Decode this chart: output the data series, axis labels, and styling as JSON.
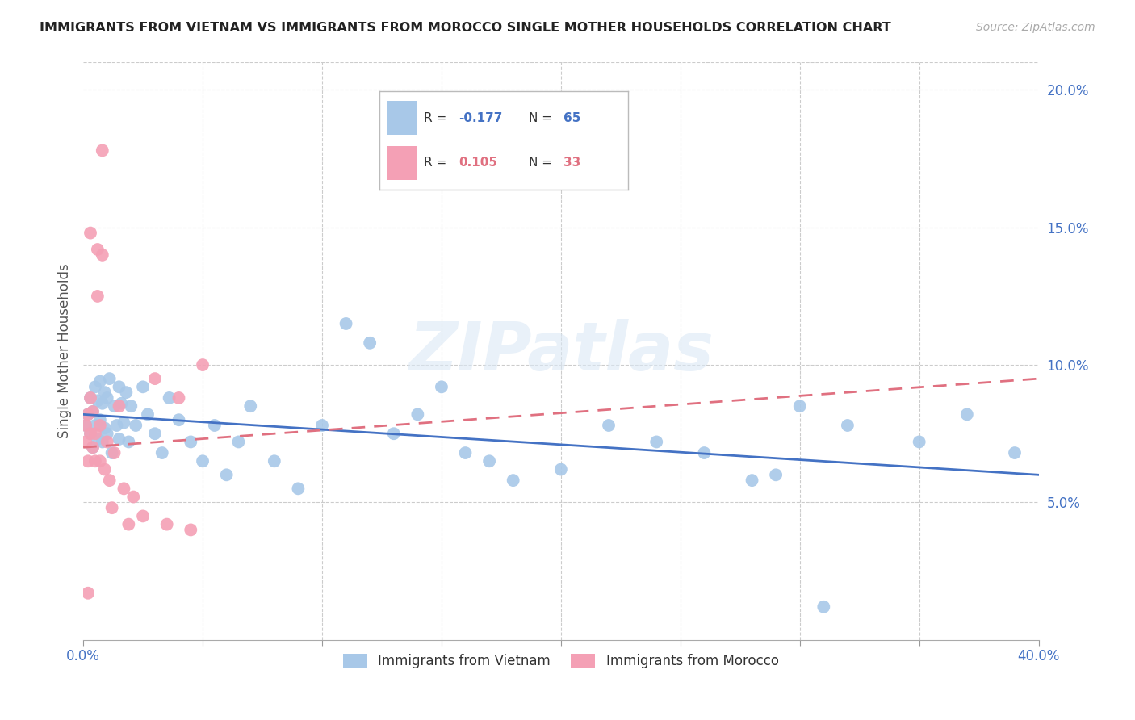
{
  "title": "IMMIGRANTS FROM VIETNAM VS IMMIGRANTS FROM MOROCCO SINGLE MOTHER HOUSEHOLDS CORRELATION CHART",
  "source": "Source: ZipAtlas.com",
  "ylabel": "Single Mother Households",
  "xlim": [
    0.0,
    0.4
  ],
  "ylim": [
    0.0,
    0.21
  ],
  "yticks": [
    0.05,
    0.1,
    0.15,
    0.2
  ],
  "ytick_labels": [
    "5.0%",
    "10.0%",
    "15.0%",
    "20.0%"
  ],
  "xtick_positions": [
    0.0,
    0.05,
    0.1,
    0.15,
    0.2,
    0.25,
    0.3,
    0.35,
    0.4
  ],
  "xtick_labels_sparse": {
    "0": "0.0%",
    "8": "40.0%"
  },
  "vietnam_color": "#a8c8e8",
  "morocco_color": "#f4a0b5",
  "vietnam_trend_color": "#4472c4",
  "morocco_trend_color": "#e07080",
  "legend_vietnam_label": "Immigrants from Vietnam",
  "legend_morocco_label": "Immigrants from Morocco",
  "vietnam_R": "-0.177",
  "vietnam_N": "65",
  "morocco_R": "0.105",
  "morocco_N": "33",
  "watermark": "ZIPatlas",
  "vietnam_trend_x0": 0.0,
  "vietnam_trend_y0": 0.082,
  "vietnam_trend_x1": 0.4,
  "vietnam_trend_y1": 0.06,
  "morocco_trend_x0": 0.0,
  "morocco_trend_y0": 0.07,
  "morocco_trend_x1": 0.4,
  "morocco_trend_y1": 0.095,
  "vietnam_x": [
    0.001,
    0.002,
    0.003,
    0.003,
    0.004,
    0.004,
    0.005,
    0.005,
    0.006,
    0.006,
    0.007,
    0.007,
    0.008,
    0.008,
    0.009,
    0.009,
    0.01,
    0.01,
    0.011,
    0.012,
    0.013,
    0.014,
    0.015,
    0.015,
    0.016,
    0.017,
    0.018,
    0.019,
    0.02,
    0.022,
    0.025,
    0.027,
    0.03,
    0.033,
    0.036,
    0.04,
    0.045,
    0.05,
    0.055,
    0.06,
    0.065,
    0.07,
    0.08,
    0.09,
    0.1,
    0.11,
    0.12,
    0.13,
    0.15,
    0.16,
    0.18,
    0.2,
    0.22,
    0.24,
    0.26,
    0.28,
    0.3,
    0.32,
    0.35,
    0.37,
    0.39,
    0.14,
    0.17,
    0.29,
    0.31
  ],
  "vietnam_y": [
    0.078,
    0.082,
    0.075,
    0.088,
    0.07,
    0.083,
    0.078,
    0.092,
    0.073,
    0.087,
    0.08,
    0.094,
    0.072,
    0.086,
    0.077,
    0.09,
    0.075,
    0.088,
    0.095,
    0.068,
    0.085,
    0.078,
    0.092,
    0.073,
    0.086,
    0.079,
    0.09,
    0.072,
    0.085,
    0.078,
    0.092,
    0.082,
    0.075,
    0.068,
    0.088,
    0.08,
    0.072,
    0.065,
    0.078,
    0.06,
    0.072,
    0.085,
    0.065,
    0.055,
    0.078,
    0.115,
    0.108,
    0.075,
    0.092,
    0.068,
    0.058,
    0.062,
    0.078,
    0.072,
    0.068,
    0.058,
    0.085,
    0.078,
    0.072,
    0.082,
    0.068,
    0.082,
    0.065,
    0.06,
    0.012
  ],
  "morocco_x": [
    0.001,
    0.001,
    0.002,
    0.002,
    0.003,
    0.003,
    0.004,
    0.004,
    0.005,
    0.005,
    0.006,
    0.006,
    0.007,
    0.007,
    0.008,
    0.009,
    0.01,
    0.011,
    0.012,
    0.013,
    0.015,
    0.017,
    0.019,
    0.021,
    0.025,
    0.03,
    0.035,
    0.04,
    0.045,
    0.05,
    0.008,
    0.003,
    0.002
  ],
  "morocco_y": [
    0.078,
    0.072,
    0.082,
    0.065,
    0.075,
    0.088,
    0.07,
    0.083,
    0.075,
    0.065,
    0.142,
    0.125,
    0.078,
    0.065,
    0.178,
    0.062,
    0.072,
    0.058,
    0.048,
    0.068,
    0.085,
    0.055,
    0.042,
    0.052,
    0.045,
    0.095,
    0.042,
    0.088,
    0.04,
    0.1,
    0.14,
    0.148,
    0.017
  ]
}
